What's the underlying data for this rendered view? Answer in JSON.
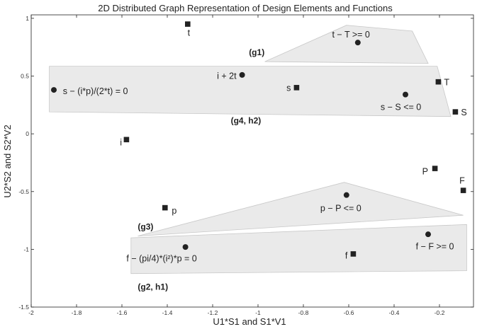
{
  "chart_data": {
    "type": "scatter",
    "title": "2D Distributed Graph Representation of Design Elements and Functions",
    "xlabel": "U1*S1 and S1*V1",
    "ylabel": "U2*S2 and S2*V2",
    "xlim": [
      -2,
      -0.05
    ],
    "ylim": [
      -1.5,
      1.03
    ],
    "xticks": [
      {
        "value": -2,
        "label": "-2"
      },
      {
        "value": -1.8,
        "label": "-1.8"
      },
      {
        "value": -1.6,
        "label": "-1.6"
      },
      {
        "value": -1.4,
        "label": "-1.4"
      },
      {
        "value": -1.2,
        "label": "-1.2"
      },
      {
        "value": -1,
        "label": "-1"
      },
      {
        "value": -0.8,
        "label": "-0.8"
      },
      {
        "value": -0.6,
        "label": "-0.6"
      },
      {
        "value": -0.4,
        "label": "-0.4"
      },
      {
        "value": -0.2,
        "label": "-0.2"
      }
    ],
    "yticks": [
      {
        "value": 1,
        "label": "1"
      },
      {
        "value": 0.5,
        "label": "0.5"
      },
      {
        "value": 0,
        "label": "0"
      },
      {
        "value": -0.5,
        "label": "-0.5"
      },
      {
        "value": -1,
        "label": "-1"
      },
      {
        "value": -1.5,
        "label": "-1.5"
      }
    ],
    "grid": false,
    "elements": [
      {
        "label": "t",
        "x": -1.31,
        "y": 0.95,
        "lx": -1.305,
        "ly": 0.85,
        "anchor": "middle"
      },
      {
        "label": "s",
        "x": -0.83,
        "y": 0.4,
        "lx": -0.855,
        "ly": 0.37,
        "anchor": "end"
      },
      {
        "label": "T",
        "x": -0.205,
        "y": 0.45,
        "lx": -0.18,
        "ly": 0.42,
        "anchor": "start"
      },
      {
        "label": "S",
        "x": -0.13,
        "y": 0.19,
        "lx": -0.105,
        "ly": 0.16,
        "anchor": "start"
      },
      {
        "label": "i",
        "x": -1.58,
        "y": -0.05,
        "lx": -1.6,
        "ly": -0.1,
        "anchor": "end"
      },
      {
        "label": "P",
        "x": -0.22,
        "y": -0.3,
        "lx": -0.25,
        "ly": -0.35,
        "anchor": "end"
      },
      {
        "label": "F",
        "x": -0.095,
        "y": -0.49,
        "lx": -0.1,
        "ly": -0.43,
        "anchor": "middle"
      },
      {
        "label": "p",
        "x": -1.41,
        "y": -0.64,
        "lx": -1.38,
        "ly": -0.69,
        "anchor": "start"
      },
      {
        "label": "f",
        "x": -0.58,
        "y": -1.04,
        "lx": -0.605,
        "ly": -1.08,
        "anchor": "end"
      }
    ],
    "functions": [
      {
        "label": "s − (i*p)/(2*t) = 0",
        "x": -1.9,
        "y": 0.38,
        "lx": -1.86,
        "ly": 0.345,
        "anchor": "start"
      },
      {
        "label": "i + 2t",
        "x": -1.07,
        "y": 0.51,
        "lx": -1.095,
        "ly": 0.475,
        "anchor": "end"
      },
      {
        "label": "t − T >= 0",
        "x": -0.56,
        "y": 0.79,
        "lx": -0.59,
        "ly": 0.835,
        "anchor": "middle"
      },
      {
        "label": "s − S <= 0",
        "x": -0.35,
        "y": 0.34,
        "lx": -0.37,
        "ly": 0.205,
        "anchor": "middle"
      },
      {
        "label": "p − P <= 0",
        "x": -0.61,
        "y": -0.53,
        "lx": -0.635,
        "ly": -0.67,
        "anchor": "middle"
      },
      {
        "label": "f − F >= 0",
        "x": -0.25,
        "y": -0.87,
        "lx": -0.22,
        "ly": -1.0,
        "anchor": "middle"
      },
      {
        "label": "f − (pi/4)*(i²)*p = 0",
        "x": -1.32,
        "y": -0.98,
        "lx": -1.58,
        "ly": -1.105,
        "anchor": "start"
      }
    ],
    "groups": [
      {
        "label": "(g1)",
        "lx": -1.04,
        "ly": 0.68,
        "anchor": "start",
        "shape": [
          [
            -0.97,
            0.625
          ],
          [
            -0.61,
            0.94
          ],
          [
            -0.32,
            0.89
          ],
          [
            -0.25,
            0.61
          ]
        ]
      },
      {
        "label": "(g4, h2)",
        "lx": -1.12,
        "ly": 0.09,
        "anchor": "start",
        "shape": [
          [
            -1.92,
            0.585
          ],
          [
            -0.21,
            0.585
          ],
          [
            -0.15,
            0.15
          ],
          [
            -1.92,
            0.19
          ]
        ]
      },
      {
        "label": "(g3)",
        "lx": -1.53,
        "ly": -0.83,
        "anchor": "start",
        "shape": [
          [
            -1.53,
            -0.885
          ],
          [
            -0.62,
            -0.42
          ],
          [
            -0.095,
            -0.705
          ]
        ]
      },
      {
        "label": "(g2, h1)",
        "lx": -1.53,
        "ly": -1.35,
        "anchor": "start",
        "shape": [
          [
            -1.56,
            -0.9
          ],
          [
            -0.08,
            -0.785
          ],
          [
            -0.08,
            -1.185
          ],
          [
            -1.56,
            -1.21
          ]
        ]
      }
    ]
  }
}
